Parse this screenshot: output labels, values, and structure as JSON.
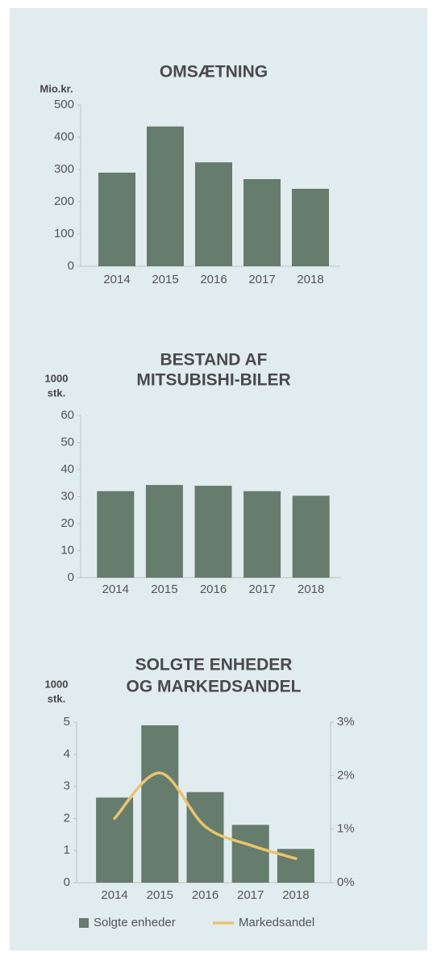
{
  "chart_data": [
    {
      "type": "bar",
      "title": [
        "OMSÆTNING"
      ],
      "ylabel": [
        "Mio.kr."
      ],
      "categories": [
        "2014",
        "2015",
        "2016",
        "2017",
        "2018"
      ],
      "values": [
        290,
        433,
        322,
        270,
        240
      ],
      "color": "#667c6c",
      "ylim": [
        0,
        500
      ],
      "yticks": [
        0,
        100,
        200,
        300,
        400,
        500
      ]
    },
    {
      "type": "bar",
      "title": [
        "BESTAND AF",
        "MITSUBISHI-BILER"
      ],
      "ylabel": [
        "1000",
        "stk."
      ],
      "categories": [
        "2014",
        "2015",
        "2016",
        "2017",
        "2018"
      ],
      "values": [
        32,
        34.3,
        34,
        32,
        30.3
      ],
      "color": "#667c6c",
      "ylim": [
        0,
        60
      ],
      "yticks": [
        0,
        10,
        20,
        30,
        40,
        50,
        60
      ]
    },
    {
      "type": "bar_line",
      "title": [
        "SOLGTE ENHEDER",
        "OG MARKEDSANDEL"
      ],
      "ylabel": [
        "1000",
        "stk."
      ],
      "categories": [
        "2014",
        "2015",
        "2016",
        "2017",
        "2018"
      ],
      "series": [
        {
          "name": "Solgte enheder",
          "color": "#667c6c",
          "values": [
            2.65,
            4.9,
            2.82,
            1.8,
            1.05
          ]
        },
        {
          "name": "Markedsandel",
          "color": "#e8c46e",
          "axis": "y2",
          "values": [
            1.2,
            2.05,
            1.05,
            0.7,
            0.45
          ]
        }
      ],
      "ylim": [
        0,
        5
      ],
      "yticks": [
        0,
        1,
        2,
        3,
        4,
        5
      ],
      "y2lim": [
        0,
        3
      ],
      "y2ticks": [
        {
          "value": 0,
          "label": "0%"
        },
        {
          "value": 1,
          "label": "1%"
        },
        {
          "value": 2,
          "label": "2%"
        },
        {
          "value": 3,
          "label": "3%"
        }
      ],
      "legend": "bottom"
    }
  ]
}
